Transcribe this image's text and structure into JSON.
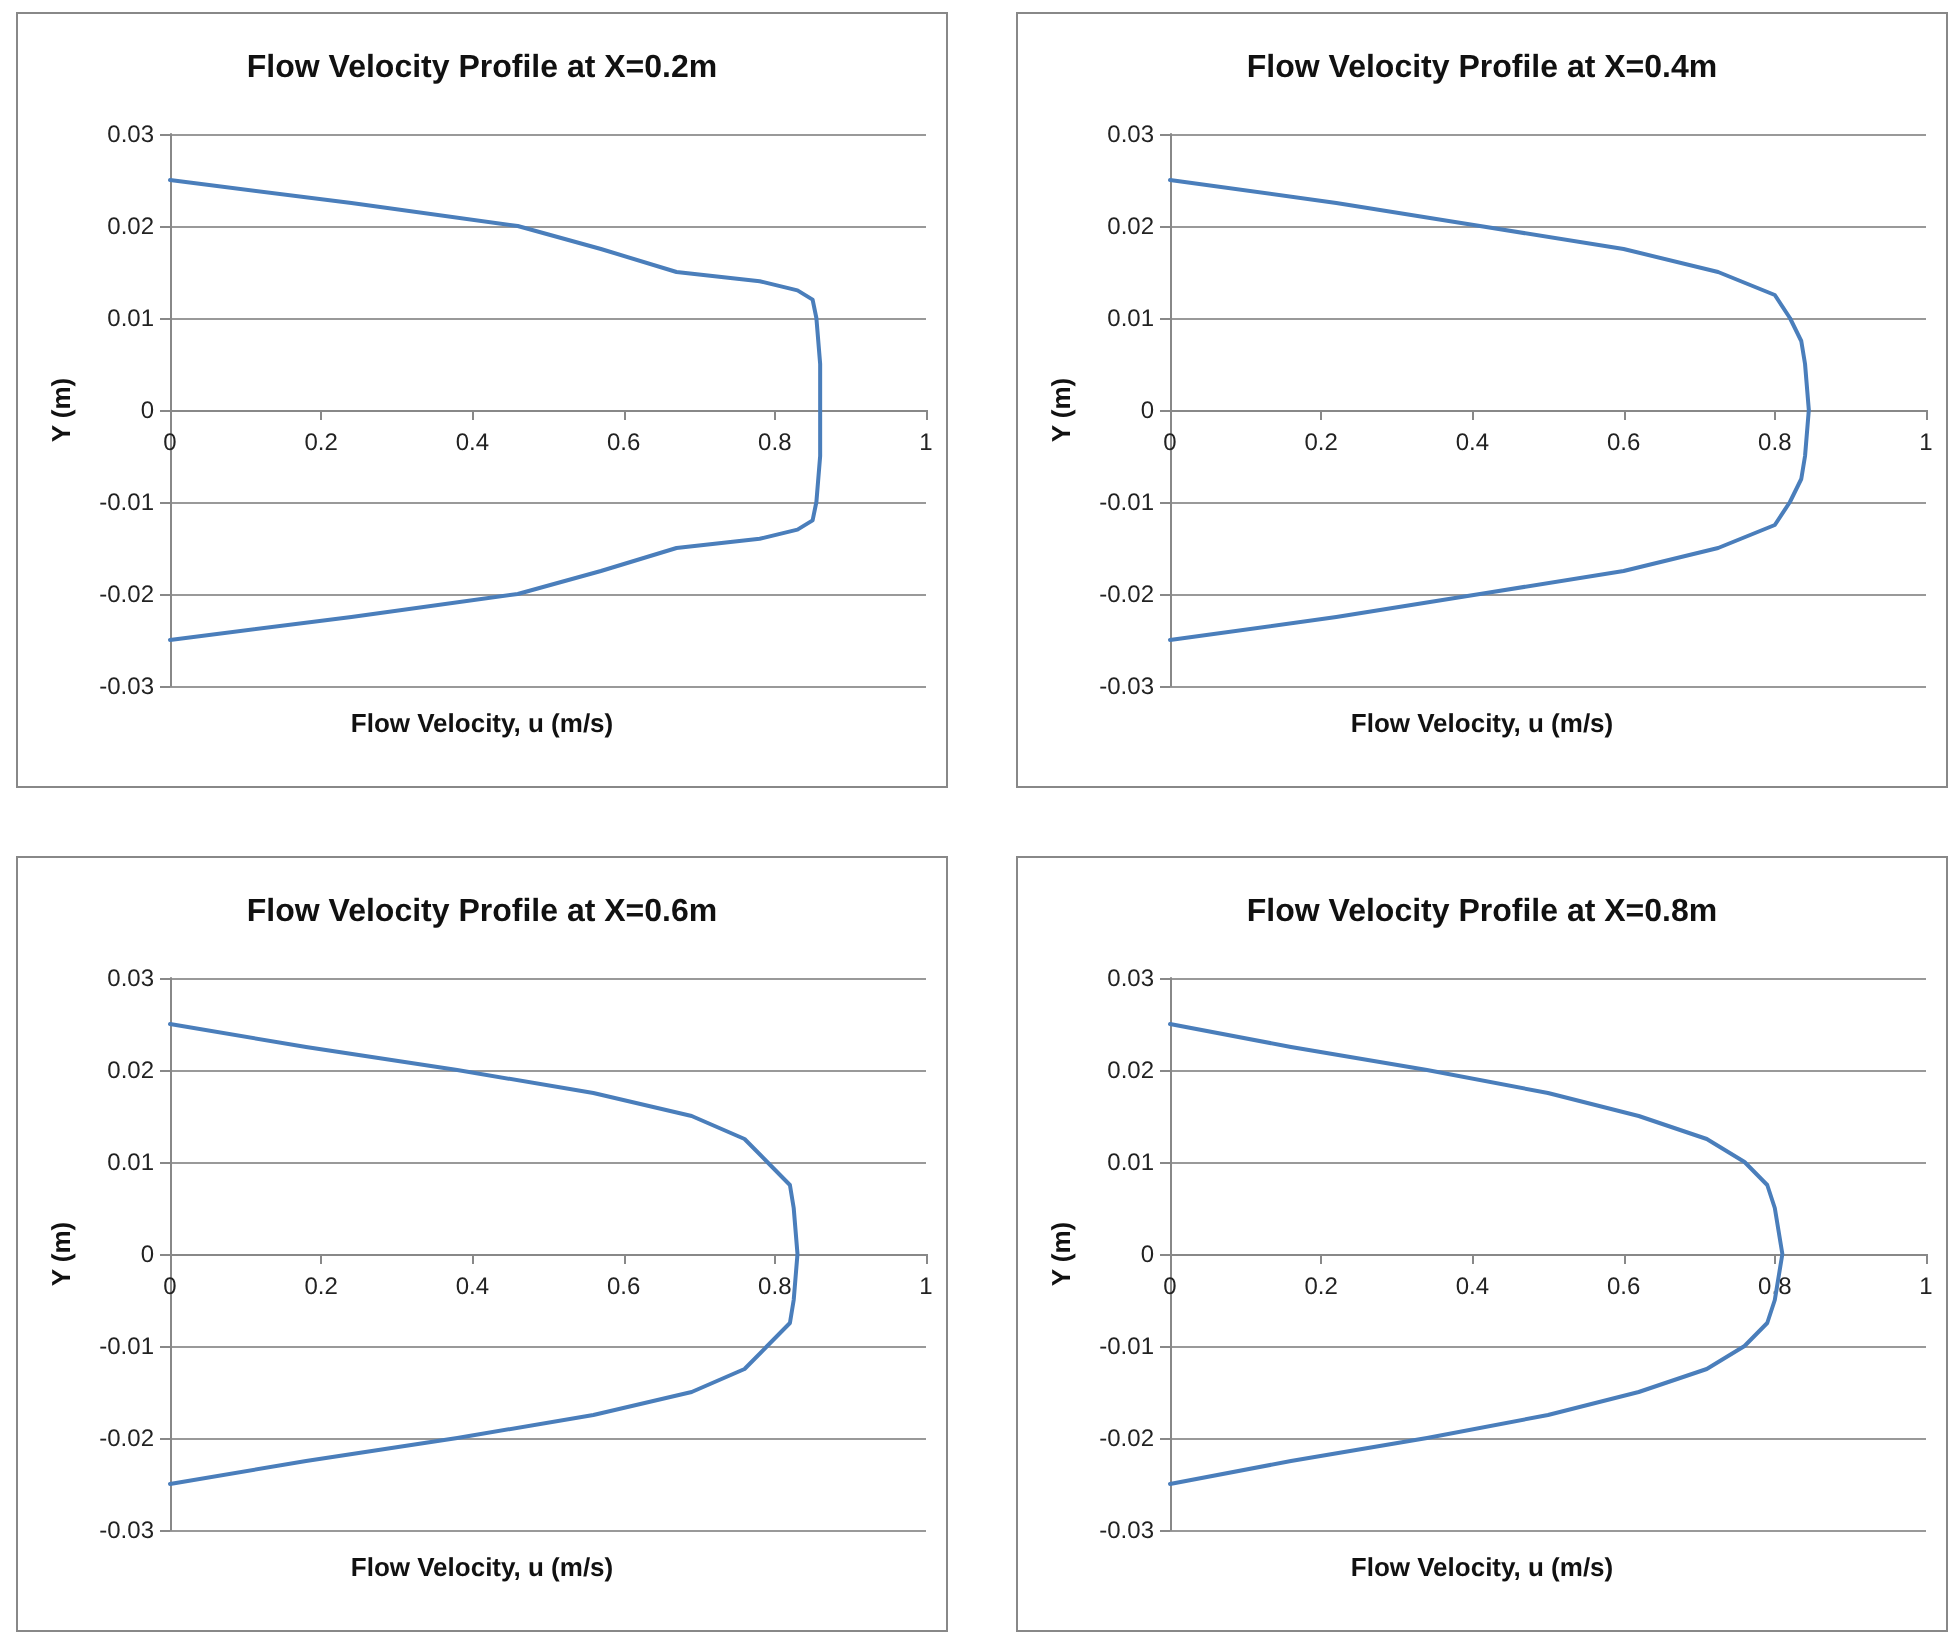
{
  "chart_data": [
    {
      "type": "line",
      "title": "Flow Velocity Profile at X=0.2m",
      "xlabel": "Flow Velocity, u (m/s)",
      "ylabel": "Y (m)",
      "xlim": [
        0,
        1
      ],
      "xticks": [
        0,
        0.2,
        0.4,
        0.6,
        0.8,
        1
      ],
      "ylim": [
        -0.03,
        0.03
      ],
      "yticks": [
        -0.03,
        -0.02,
        -0.01,
        0,
        0.01,
        0.02,
        0.03
      ],
      "grid": "y",
      "marker": "none",
      "line_style": "solid",
      "series": [
        {
          "color": "#4a7ebb",
          "x": [
            0,
            0.24,
            0.46,
            0.57,
            0.67,
            0.78,
            0.83,
            0.85,
            0.855,
            0.86,
            0.86,
            0.86,
            0.855,
            0.85,
            0.83,
            0.78,
            0.67,
            0.57,
            0.46,
            0.24,
            0
          ],
          "values": [
            0.025,
            0.0225,
            0.02,
            0.0175,
            0.015,
            0.014,
            0.013,
            0.012,
            0.01,
            0.005,
            0,
            -0.005,
            -0.01,
            -0.012,
            -0.013,
            -0.014,
            -0.015,
            -0.0175,
            -0.02,
            -0.0225,
            -0.025
          ]
        }
      ]
    },
    {
      "type": "line",
      "title": "Flow Velocity Profile at X=0.4m",
      "xlabel": "Flow Velocity, u (m/s)",
      "ylabel": "Y (m)",
      "xlim": [
        0,
        1
      ],
      "xticks": [
        0,
        0.2,
        0.4,
        0.6,
        0.8,
        1
      ],
      "ylim": [
        -0.03,
        0.03
      ],
      "yticks": [
        -0.03,
        -0.02,
        -0.01,
        0,
        0.01,
        0.02,
        0.03
      ],
      "grid": "y",
      "marker": "none",
      "line_style": "solid",
      "series": [
        {
          "color": "#4a7ebb",
          "x": [
            0,
            0.22,
            0.41,
            0.6,
            0.725,
            0.8,
            0.82,
            0.835,
            0.84,
            0.845,
            0.84,
            0.835,
            0.82,
            0.8,
            0.725,
            0.6,
            0.41,
            0.22,
            0
          ],
          "values": [
            0.025,
            0.0225,
            0.02,
            0.0175,
            0.015,
            0.0125,
            0.01,
            0.0075,
            0.005,
            0,
            -0.005,
            -0.0075,
            -0.01,
            -0.0125,
            -0.015,
            -0.0175,
            -0.02,
            -0.0225,
            -0.025
          ]
        }
      ]
    },
    {
      "type": "line",
      "title": "Flow Velocity Profile at X=0.6m",
      "xlabel": "Flow Velocity, u (m/s)",
      "ylabel": "Y (m)",
      "xlim": [
        0,
        1
      ],
      "xticks": [
        0,
        0.2,
        0.4,
        0.6,
        0.8,
        1
      ],
      "ylim": [
        -0.03,
        0.03
      ],
      "yticks": [
        -0.03,
        -0.02,
        -0.01,
        0,
        0.01,
        0.02,
        0.03
      ],
      "grid": "y",
      "marker": "none",
      "line_style": "solid",
      "series": [
        {
          "color": "#4a7ebb",
          "x": [
            0,
            0.18,
            0.38,
            0.56,
            0.69,
            0.76,
            0.79,
            0.82,
            0.825,
            0.83,
            0.825,
            0.82,
            0.79,
            0.76,
            0.69,
            0.56,
            0.38,
            0.18,
            0
          ],
          "values": [
            0.025,
            0.0225,
            0.02,
            0.0175,
            0.015,
            0.0125,
            0.01,
            0.0075,
            0.005,
            0,
            -0.005,
            -0.0075,
            -0.01,
            -0.0125,
            -0.015,
            -0.0175,
            -0.02,
            -0.0225,
            -0.025
          ]
        }
      ]
    },
    {
      "type": "line",
      "title": "Flow Velocity Profile at X=0.8m",
      "xlabel": "Flow Velocity, u (m/s)",
      "ylabel": "Y (m)",
      "xlim": [
        0,
        1
      ],
      "xticks": [
        0,
        0.2,
        0.4,
        0.6,
        0.8,
        1
      ],
      "ylim": [
        -0.03,
        0.03
      ],
      "yticks": [
        -0.03,
        -0.02,
        -0.01,
        0,
        0.01,
        0.02,
        0.03
      ],
      "grid": "y",
      "marker": "none",
      "line_style": "solid",
      "series": [
        {
          "color": "#4a7ebb",
          "x": [
            0,
            0.16,
            0.34,
            0.5,
            0.62,
            0.71,
            0.76,
            0.79,
            0.8,
            0.81,
            0.8,
            0.79,
            0.76,
            0.71,
            0.62,
            0.5,
            0.34,
            0.16,
            0
          ],
          "values": [
            0.025,
            0.0225,
            0.02,
            0.0175,
            0.015,
            0.0125,
            0.01,
            0.0075,
            0.005,
            0,
            -0.005,
            -0.0075,
            -0.01,
            -0.0125,
            -0.015,
            -0.0175,
            -0.02,
            -0.0225,
            -0.025
          ]
        }
      ]
    }
  ]
}
